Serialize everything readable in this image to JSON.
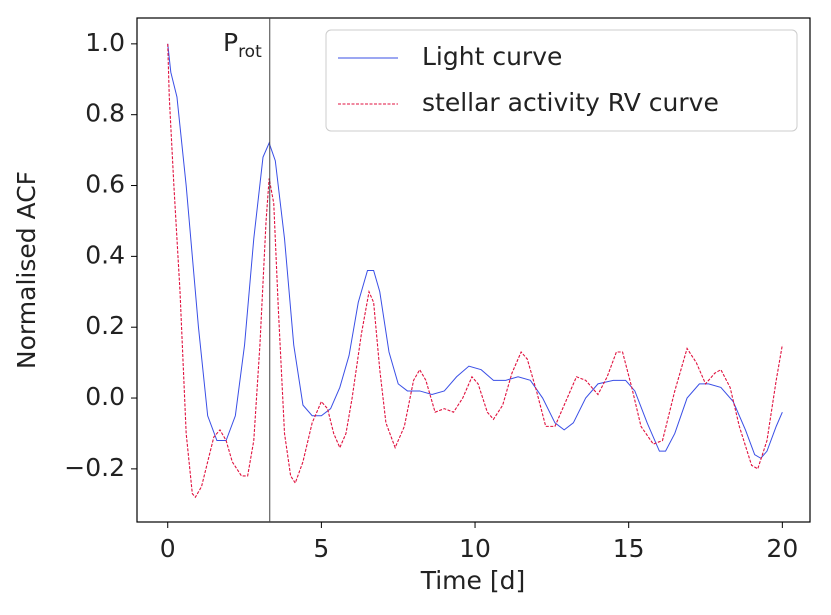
{
  "chart_data": {
    "type": "line",
    "xlabel": "Time [d]",
    "ylabel": "Normalised ACF",
    "xlim": [
      -1,
      20.9
    ],
    "ylim": [
      -0.35,
      1.073
    ],
    "xticks": [
      0,
      5,
      10,
      15,
      20
    ],
    "yticks": [
      {
        "value": -0.2,
        "label": "−0.2"
      },
      {
        "value": 0,
        "label": "0.0"
      },
      0.2,
      0.4,
      0.6,
      0.8,
      {
        "value": 1,
        "label": "1.0"
      }
    ],
    "legend": "upper right",
    "annotation": {
      "text": "P",
      "subscript": "rot",
      "x": 3.32
    },
    "series": [
      {
        "name": "Light curve",
        "color": "#3a4fe6",
        "linestyle": "solid",
        "x": [
          0,
          0.1,
          0.3,
          0.6,
          1.0,
          1.3,
          1.6,
          1.9,
          2.2,
          2.5,
          2.8,
          3.1,
          3.3,
          3.5,
          3.8,
          4.1,
          4.4,
          4.7,
          5.0,
          5.3,
          5.6,
          5.9,
          6.2,
          6.5,
          6.7,
          6.9,
          7.2,
          7.5,
          7.8,
          8.2,
          8.6,
          9.0,
          9.4,
          9.8,
          10.2,
          10.6,
          11.0,
          11.4,
          11.8,
          12.2,
          12.6,
          12.9,
          13.2,
          13.6,
          14.0,
          14.5,
          14.9,
          15.2,
          15.6,
          16.0,
          16.2,
          16.5,
          16.9,
          17.3,
          17.6,
          18.0,
          18.4,
          18.8,
          19.1,
          19.3,
          19.5,
          19.8,
          20.0
        ],
        "values": [
          1.0,
          0.92,
          0.85,
          0.6,
          0.2,
          -0.05,
          -0.12,
          -0.12,
          -0.05,
          0.15,
          0.45,
          0.68,
          0.72,
          0.67,
          0.45,
          0.15,
          -0.02,
          -0.05,
          -0.05,
          -0.03,
          0.03,
          0.12,
          0.27,
          0.36,
          0.36,
          0.3,
          0.13,
          0.04,
          0.02,
          0.02,
          0.01,
          0.02,
          0.06,
          0.09,
          0.08,
          0.05,
          0.05,
          0.06,
          0.05,
          0.0,
          -0.07,
          -0.09,
          -0.07,
          0.0,
          0.04,
          0.05,
          0.05,
          0.02,
          -0.07,
          -0.15,
          -0.15,
          -0.1,
          0.0,
          0.04,
          0.04,
          0.03,
          -0.01,
          -0.09,
          -0.16,
          -0.17,
          -0.15,
          -0.08,
          -0.04
        ]
      },
      {
        "name": "stellar activity RV curve",
        "color": "#e0123f",
        "linestyle": "dashed",
        "x": [
          0,
          0.05,
          0.2,
          0.4,
          0.6,
          0.8,
          0.9,
          1.1,
          1.3,
          1.5,
          1.7,
          1.9,
          2.1,
          2.4,
          2.6,
          2.8,
          3.0,
          3.2,
          3.3,
          3.45,
          3.6,
          3.8,
          4.0,
          4.15,
          4.4,
          4.7,
          5.0,
          5.2,
          5.4,
          5.6,
          5.8,
          6.0,
          6.3,
          6.55,
          6.7,
          6.9,
          7.1,
          7.4,
          7.7,
          8.0,
          8.2,
          8.4,
          8.7,
          9.0,
          9.3,
          9.6,
          9.9,
          10.1,
          10.4,
          10.6,
          10.9,
          11.2,
          11.5,
          11.7,
          12.0,
          12.3,
          12.6,
          12.9,
          13.3,
          13.6,
          14.0,
          14.3,
          14.6,
          14.8,
          15.1,
          15.4,
          15.8,
          16.1,
          16.5,
          16.9,
          17.2,
          17.5,
          17.8,
          18.0,
          18.3,
          18.6,
          19.0,
          19.2,
          19.5,
          19.8,
          20.0
        ],
        "values": [
          1.0,
          0.85,
          0.6,
          0.3,
          -0.1,
          -0.27,
          -0.28,
          -0.25,
          -0.18,
          -0.11,
          -0.09,
          -0.12,
          -0.18,
          -0.22,
          -0.22,
          -0.12,
          0.15,
          0.5,
          0.62,
          0.55,
          0.25,
          -0.1,
          -0.22,
          -0.24,
          -0.18,
          -0.07,
          -0.01,
          -0.03,
          -0.1,
          -0.14,
          -0.1,
          0.0,
          0.18,
          0.3,
          0.27,
          0.08,
          -0.07,
          -0.14,
          -0.08,
          0.05,
          0.08,
          0.05,
          -0.04,
          -0.03,
          -0.04,
          0.0,
          0.06,
          0.04,
          -0.04,
          -0.06,
          -0.02,
          0.07,
          0.13,
          0.11,
          0.02,
          -0.08,
          -0.08,
          -0.02,
          0.06,
          0.05,
          0.01,
          0.06,
          0.13,
          0.13,
          0.03,
          -0.08,
          -0.13,
          -0.12,
          0.02,
          0.14,
          0.1,
          0.04,
          0.07,
          0.08,
          0.03,
          -0.08,
          -0.19,
          -0.2,
          -0.12,
          0.05,
          0.15
        ]
      }
    ]
  }
}
